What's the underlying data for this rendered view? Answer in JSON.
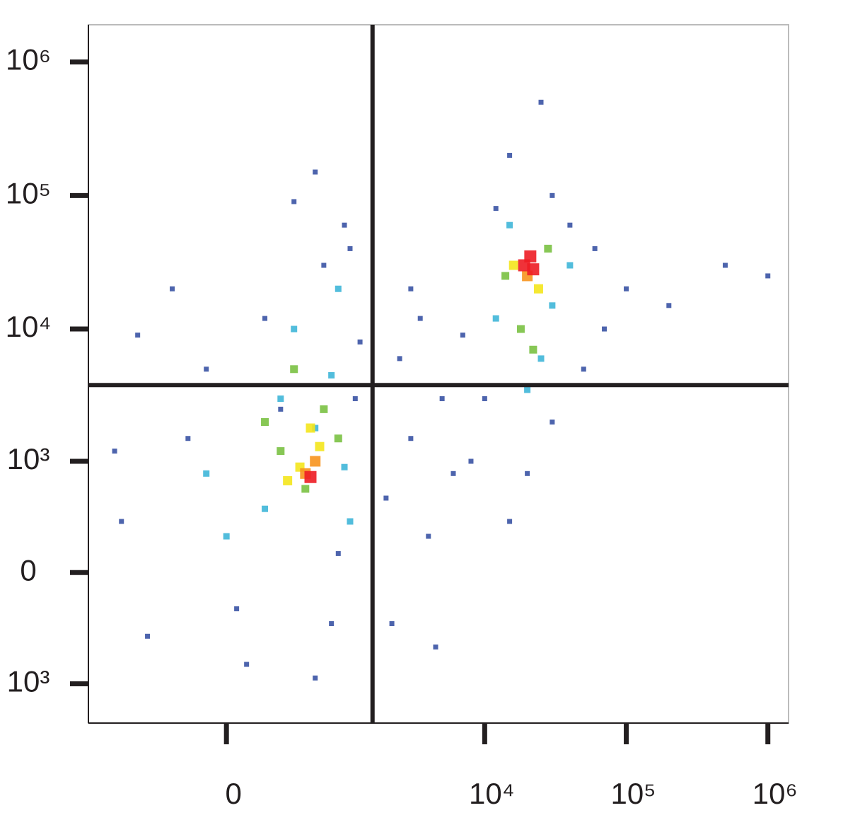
{
  "chart_data": {
    "type": "scatter",
    "scale": "asinh",
    "xlim": [
      -1400,
      1400000
    ],
    "ylim": [
      -2000,
      1900000
    ],
    "xticks": [
      0,
      {
        "value": 10000,
        "label": "10⁴"
      },
      {
        "value": 100000,
        "label": "10⁵"
      },
      {
        "value": 1000000,
        "label": "10⁶"
      }
    ],
    "yticks": [
      {
        "value": -1000,
        "label": "10³"
      },
      0,
      {
        "value": 1000,
        "label": "10³"
      },
      {
        "value": 10000,
        "label": "10⁴"
      },
      {
        "value": 100000,
        "label": "10⁵"
      },
      {
        "value": 1000000,
        "label": "10⁶"
      }
    ],
    "gates": {
      "x": 1600,
      "y": 3800
    },
    "series": [
      {
        "color": "#3a53a4",
        "x": [
          -800,
          -500,
          -200,
          100,
          300,
          600,
          900,
          1200,
          -100,
          200,
          700,
          1000,
          400,
          -300,
          1300,
          -600,
          50,
          800,
          -900,
          1100,
          600,
          2000,
          3000,
          4000,
          2500,
          5000,
          6000,
          3500,
          7000,
          2200,
          4500,
          8000,
          3000,
          15000,
          25000,
          30000,
          40000,
          60000,
          100000,
          200000,
          500000,
          1000000,
          12000,
          50000,
          30000,
          20000,
          15000,
          70000,
          10000
        ],
        "values": [
          300,
          -400,
          1500,
          -700,
          2500,
          -900,
          100,
          3000,
          5000,
          12000,
          30000,
          60000,
          90000,
          20000,
          8000,
          9000,
          -200,
          -300,
          1200,
          40000,
          150000,
          500,
          1500,
          200,
          6000,
          3000,
          800,
          12000,
          9000,
          -300,
          -500,
          1000,
          20000,
          200000,
          500000,
          100000,
          60000,
          40000,
          20000,
          15000,
          30000,
          25000,
          80000,
          5000,
          2000,
          800,
          300,
          10000,
          3000
        ]
      },
      {
        "color": "#3fb6d8",
        "x": [
          200,
          600,
          1000,
          -100,
          800,
          400,
          900,
          300,
          1100,
          0,
          12000,
          30000,
          40000,
          15000,
          25000,
          20000
        ],
        "values": [
          400,
          1800,
          900,
          800,
          4500,
          10000,
          20000,
          3000,
          300,
          200,
          12000,
          15000,
          30000,
          60000,
          6000,
          3500
        ]
      },
      {
        "color": "#7ac143",
        "x": [
          300,
          700,
          500,
          900,
          400,
          200,
          18000,
          28000,
          14000,
          22000
        ],
        "values": [
          1200,
          2500,
          600,
          1500,
          5000,
          2000,
          10000,
          40000,
          25000,
          7000
        ]
      },
      {
        "color": "#f4e61c",
        "x": [
          450,
          650,
          350,
          550,
          16000,
          24000
        ],
        "values": [
          900,
          1300,
          700,
          1800,
          30000,
          20000
        ]
      },
      {
        "color": "#f7941d",
        "x": [
          500,
          600,
          20000
        ],
        "values": [
          800,
          1000,
          25000
        ]
      },
      {
        "color": "#ed1c24",
        "x": [
          550,
          19000,
          21000,
          22000
        ],
        "values": [
          750,
          30000,
          35000,
          28000
        ]
      }
    ]
  }
}
